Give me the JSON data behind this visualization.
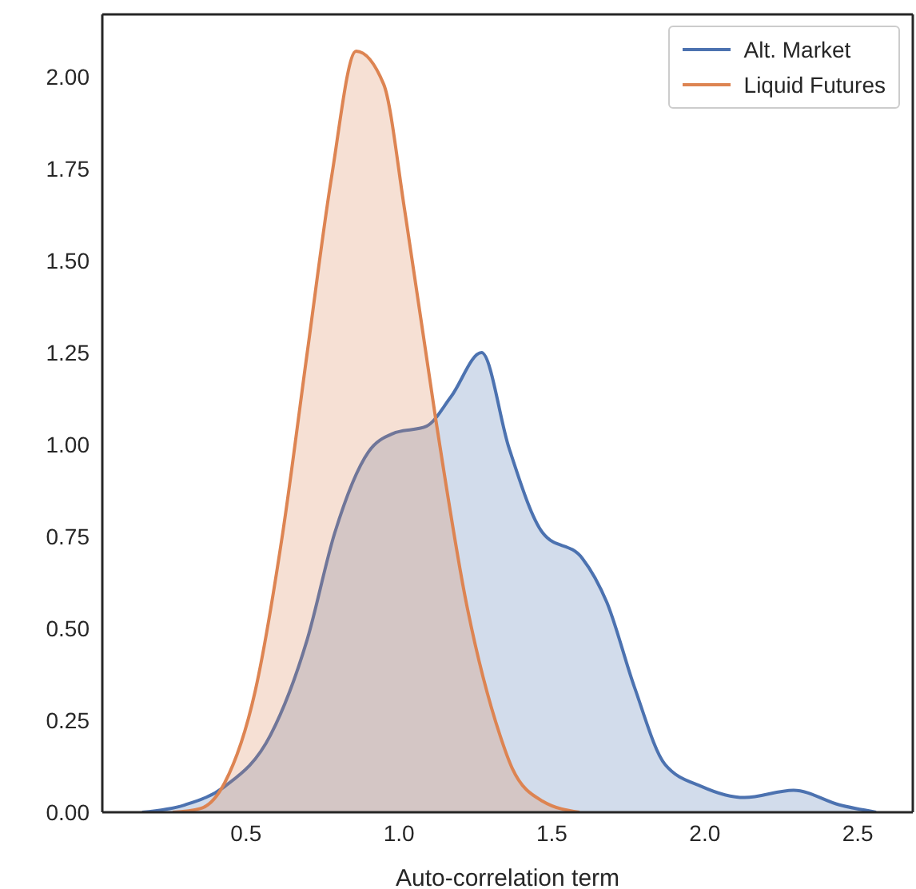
{
  "chart_data": {
    "type": "area",
    "xlabel": "Auto-correlation term",
    "xlim": [
      0.03,
      2.68
    ],
    "xticks": [
      0.5,
      {
        "value": 1,
        "label": "1.0"
      },
      1.5,
      {
        "value": 2,
        "label": "2.0"
      },
      2.5
    ],
    "ylim": [
      0,
      2.17
    ],
    "yticks": [
      {
        "value": 0,
        "label": "0.00"
      },
      0.25,
      {
        "value": 0.5,
        "label": "0.50"
      },
      0.75,
      {
        "value": 1,
        "label": "1.00"
      },
      1.25,
      {
        "value": 1.5,
        "label": "1.50"
      },
      1.75,
      {
        "value": 2,
        "label": "2.00"
      }
    ],
    "grid": false,
    "legend": "top right",
    "series": [
      {
        "name": "Alt. Market",
        "color": "#4c72b0",
        "x": [
          0.16,
          0.3,
          0.43,
          0.58,
          0.7,
          0.79,
          0.9,
          0.98,
          1.09,
          1.17,
          1.27,
          1.36,
          1.47,
          1.6,
          1.68,
          1.77,
          1.87,
          1.99,
          2.13,
          2.29,
          2.44,
          2.56
        ],
        "values": [
          0,
          0.02,
          0.07,
          0.21,
          0.47,
          0.76,
          0.98,
          1.03,
          1.05,
          1.13,
          1.25,
          0.99,
          0.76,
          0.69,
          0.57,
          0.34,
          0.13,
          0.07,
          0.04,
          0.06,
          0.02,
          0
        ]
      },
      {
        "name": "Liquid Futures",
        "color": "#dd8452",
        "x": [
          0.26,
          0.35,
          0.43,
          0.53,
          0.62,
          0.7,
          0.78,
          0.86,
          0.95,
          1.02,
          1.12,
          1.22,
          1.33,
          1.37,
          1.47,
          1.59
        ],
        "values": [
          0,
          0.01,
          0.08,
          0.33,
          0.76,
          1.25,
          1.73,
          2.07,
          1.98,
          1.63,
          1.07,
          0.57,
          0.21,
          0.12,
          0.03,
          0
        ]
      }
    ]
  }
}
